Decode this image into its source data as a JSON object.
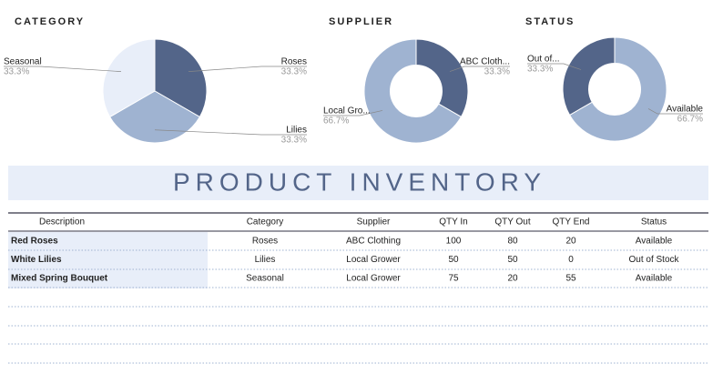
{
  "chart_data": [
    {
      "type": "pie",
      "title": "CATEGORY",
      "categories": [
        "Roses",
        "Lilies",
        "Seasonal"
      ],
      "values": [
        33.3,
        33.3,
        33.3
      ],
      "value_labels": [
        "33.3%",
        "33.3%",
        "33.3%"
      ],
      "colors": [
        "#536589",
        "#9fb3d1",
        "#e8eef9"
      ]
    },
    {
      "type": "donut",
      "title": "SUPPLIER",
      "categories": [
        "ABC Cloth...",
        "Local Gro..."
      ],
      "values": [
        33.3,
        66.7
      ],
      "value_labels": [
        "33.3%",
        "66.7%"
      ],
      "colors": [
        "#536589",
        "#9fb3d1"
      ]
    },
    {
      "type": "donut",
      "title": "STATUS",
      "categories": [
        "Available",
        "Out of..."
      ],
      "values": [
        66.7,
        33.3
      ],
      "value_labels": [
        "66.7%",
        "33.3%"
      ],
      "colors": [
        "#9fb3d1",
        "#536589"
      ]
    }
  ],
  "table": {
    "title": "PRODUCT INVENTORY",
    "headers": [
      "Description",
      "Category",
      "Supplier",
      "QTY In",
      "QTY Out",
      "QTY End",
      "Status"
    ],
    "rows": [
      [
        "Red Roses",
        "Roses",
        "ABC Clothing",
        "100",
        "80",
        "20",
        "Available"
      ],
      [
        "White Lilies",
        "Lilies",
        "Local Grower",
        "50",
        "50",
        "0",
        "Out of Stock"
      ],
      [
        "Mixed Spring Bouquet",
        "Seasonal",
        "Local Grower",
        "75",
        "20",
        "55",
        "Available"
      ]
    ]
  }
}
